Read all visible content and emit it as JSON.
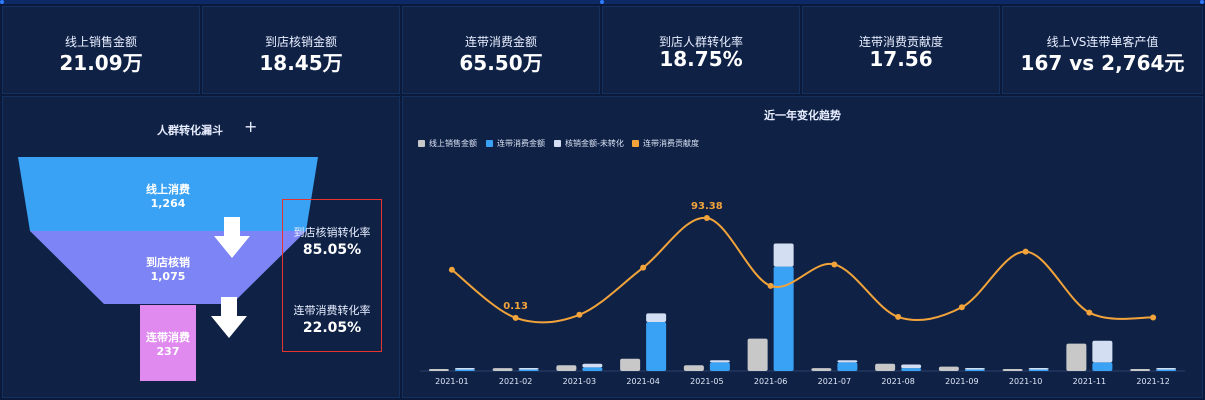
{
  "kpis": [
    {
      "label": "线上销售金额",
      "value": "21.09万"
    },
    {
      "label": "到店核销金额",
      "value": "18.45万"
    },
    {
      "label": "连带消费金额",
      "value": "65.50万"
    },
    {
      "label": "到店人群转化率",
      "value": "18.75%"
    },
    {
      "label": "连带消费贡献度",
      "value": "17.56"
    },
    {
      "label": "线上VS连带单客产值",
      "value": "167 vs 2,764元"
    }
  ],
  "funnel": {
    "title": "人群转化漏斗",
    "plus": "+",
    "stages": [
      {
        "name": "线上消费",
        "value": "1,264",
        "color": "#3aa2f5"
      },
      {
        "name": "到店核销",
        "value": "1,075",
        "color": "#7d84f5"
      },
      {
        "name": "连带消费",
        "value": "237",
        "color": "#e08af0"
      }
    ],
    "rates": [
      {
        "label": "到店核销转化率",
        "value": "85.05%"
      },
      {
        "label": "连带消费转化率",
        "value": "22.05%"
      }
    ]
  },
  "trend": {
    "title": "近一年变化趋势",
    "legend": [
      {
        "name": "线上销售金额",
        "color": "#c8c8c8"
      },
      {
        "name": "连带消费金额",
        "color": "#3aa2f5"
      },
      {
        "name": "核销金额-未转化",
        "color": "#d4def2"
      },
      {
        "name": "连带消费贡献度",
        "color": "#f2a33a"
      }
    ]
  },
  "chart_data": {
    "type": "bar",
    "title": "近一年变化趋势",
    "categories": [
      "2021-01",
      "2021-02",
      "2021-03",
      "2021-04",
      "2021-05",
      "2021-06",
      "2021-07",
      "2021-08",
      "2021-09",
      "2021-10",
      "2021-11",
      "2021-12"
    ],
    "series": [
      {
        "name": "线上销售金额",
        "type": "bar",
        "values": [
          2,
          4,
          8,
          17,
          8,
          45,
          4,
          10,
          6,
          1,
          38,
          1
        ]
      },
      {
        "name": "连带消费金额",
        "type": "bar",
        "stack": "a",
        "values": [
          1,
          2,
          5,
          68,
          12,
          145,
          12,
          4,
          1,
          0.5,
          12,
          0.5
        ]
      },
      {
        "name": "核销金额-未转化",
        "type": "bar",
        "stack": "a",
        "values": [
          2,
          2,
          5,
          12,
          3,
          32,
          3,
          5,
          1,
          0.5,
          30,
          0.5
        ]
      },
      {
        "name": "连带消费贡献度",
        "type": "line",
        "values": [
          45,
          0.13,
          3,
          47,
          93.38,
          30,
          50,
          1,
          10,
          62,
          5,
          0.5
        ]
      }
    ],
    "labels": [
      {
        "index": 1,
        "text": "0.13"
      },
      {
        "index": 4,
        "text": "93.38"
      }
    ]
  }
}
